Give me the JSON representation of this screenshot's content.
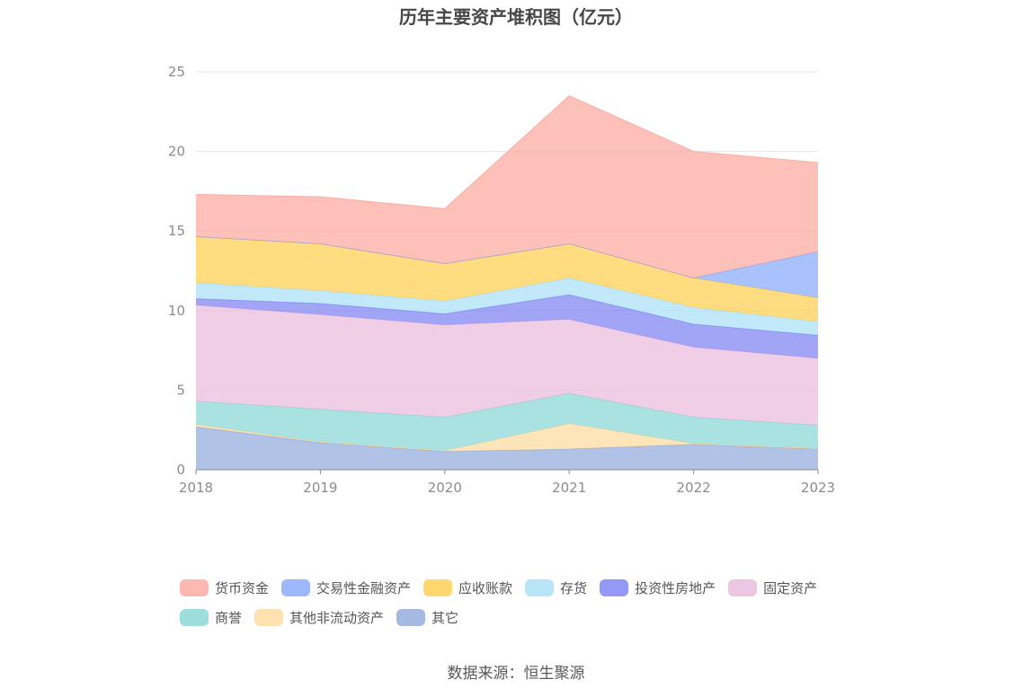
{
  "chart_data": {
    "type": "area",
    "stacked": true,
    "title": "历年主要资产堆积图（亿元）",
    "x": [
      "2018",
      "2019",
      "2020",
      "2021",
      "2022",
      "2023"
    ],
    "ylim": [
      0,
      25
    ],
    "yticks": [
      0,
      5,
      10,
      15,
      20,
      25
    ],
    "grid": true,
    "legend_position": "bottom",
    "series": [
      {
        "name": "其它",
        "color": "#8fa8dc",
        "values": [
          2.7,
          1.7,
          1.15,
          1.3,
          1.6,
          1.3
        ]
      },
      {
        "name": "其他非流动资产",
        "color": "#fcd99b",
        "values": [
          0.15,
          0.05,
          0.05,
          1.6,
          0.05,
          0.05
        ]
      },
      {
        "name": "商誉",
        "color": "#85d6d4",
        "values": [
          1.45,
          2.05,
          2.1,
          1.9,
          1.65,
          1.45
        ]
      },
      {
        "name": "固定资产",
        "color": "#e8b9db",
        "values": [
          6.05,
          5.95,
          5.8,
          4.65,
          4.4,
          4.2
        ]
      },
      {
        "name": "投资性房地产",
        "color": "#7b7ff2",
        "values": [
          0.4,
          0.7,
          0.7,
          1.55,
          1.45,
          1.45
        ]
      },
      {
        "name": "存货",
        "color": "#a8dff8",
        "values": [
          1.0,
          0.8,
          0.8,
          1.05,
          1.05,
          0.85
        ]
      },
      {
        "name": "应收账款",
        "color": "#ffcd4a",
        "values": [
          2.9,
          2.95,
          2.35,
          2.15,
          1.85,
          1.5
        ]
      },
      {
        "name": "交易性金融资产",
        "color": "#84a6fb",
        "values": [
          0,
          0,
          0,
          0,
          0,
          2.9
        ]
      },
      {
        "name": "货币资金",
        "color": "#fca79d",
        "values": [
          2.65,
          2.95,
          3.45,
          9.3,
          7.95,
          5.6
        ]
      }
    ],
    "legend_order": [
      "货币资金",
      "交易性金融资产",
      "应收账款",
      "存货",
      "投资性房地产",
      "固定资产",
      "商誉",
      "其他非流动资产",
      "其它"
    ]
  },
  "source_text": "数据来源：恒生聚源"
}
